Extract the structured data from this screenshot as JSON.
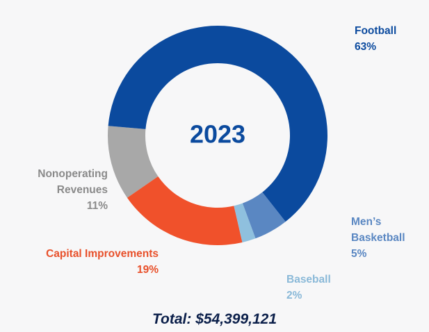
{
  "chart_data": {
    "type": "donut",
    "title": "2023",
    "footer": "Total: $54,399,121",
    "categories": [
      "Football",
      "Men’s Basketball",
      "Baseball",
      "Capital Improvements",
      "Nonoperating Revenues"
    ],
    "values": [
      63,
      5,
      2,
      19,
      11
    ],
    "value_labels": [
      "63%",
      "5%",
      "2%",
      "19%",
      "11%"
    ],
    "colors": [
      "#0b4a9e",
      "#5a87c2",
      "#8fc0de",
      "#f0512b",
      "#a8a8a8"
    ]
  }
}
